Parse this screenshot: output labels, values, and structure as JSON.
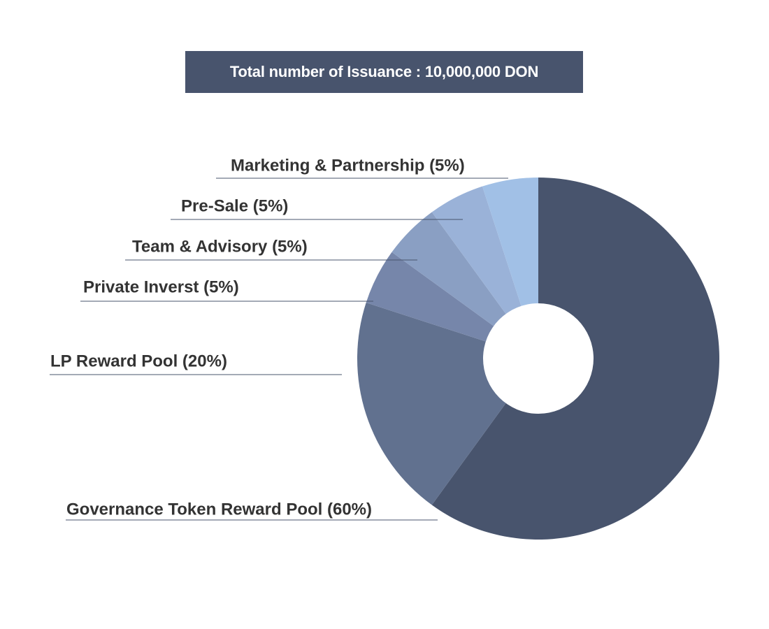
{
  "title": "Total number of Issuance : 10,000,000 DON",
  "colors": {
    "banner": "#48546d",
    "text": "#333333",
    "leader_line": "#48546d",
    "hole": "#ffffff"
  },
  "chart_data": {
    "type": "pie",
    "variant": "donut",
    "title": "Total number of Issuance : 10,000,000 DON",
    "slices": [
      {
        "name": "Governance Token Reward Pool",
        "value": 60,
        "label": "Governance Token Reward Pool (60%)",
        "color": "#48546d"
      },
      {
        "name": "LP Reward Pool",
        "value": 20,
        "label": "LP Reward Pool (20%)",
        "color": "#61718f"
      },
      {
        "name": "Private Inverst",
        "value": 5,
        "label": "Private Inverst (5%)",
        "color": "#7686aa"
      },
      {
        "name": "Team & Advisory",
        "value": 5,
        "label": "Team & Advisory (5%)",
        "color": "#8a9fc3"
      },
      {
        "name": "Pre-Sale",
        "value": 5,
        "label": "Pre-Sale (5%)",
        "color": "#9ab2d8"
      },
      {
        "name": "Marketing & Partnership",
        "value": 5,
        "label": "Marketing & Partnership (5%)",
        "color": "#a1c0e6"
      }
    ],
    "start": "top",
    "direction": "clockwise",
    "legend": "labels-left-with-leader-lines"
  }
}
